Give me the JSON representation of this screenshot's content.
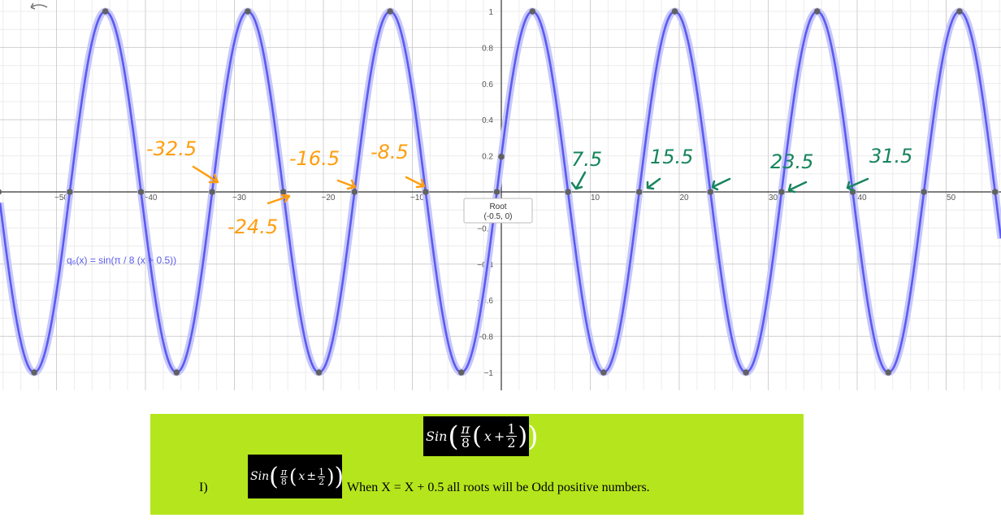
{
  "chart_data": {
    "type": "line",
    "function_label": "q₆(x) = sin(π / 8 (x + 0.5))",
    "x_ticks": [
      -50,
      -40,
      -30,
      -20,
      -10,
      0,
      10,
      20,
      30,
      40,
      50
    ],
    "x_tick_labels": [
      "−50",
      "−40",
      "−30",
      "−20",
      "−10",
      "0",
      "10",
      "20",
      "30",
      "40",
      "50"
    ],
    "y_ticks": [
      1,
      0.8,
      0.6,
      0.4,
      0.2,
      -0.2,
      -0.4,
      -0.6,
      -0.8,
      -1
    ],
    "y_tick_labels": [
      "1",
      "0.8",
      "0.6",
      "0.4",
      "0.2",
      "−0.2",
      "−0.4",
      "−0.6",
      "−0.8",
      "−1"
    ],
    "xlim": [
      -56.2,
      56.1
    ],
    "ylim": [
      -1.06,
      1.06
    ],
    "grid": true,
    "series": [
      {
        "expression": "sin(pi/8*(x+0.5))",
        "period": 16,
        "phase_shift": -0.5,
        "color": "#5b5bf0",
        "marked_roots": [
          -56.5,
          -48.5,
          -40.5,
          -32.5,
          -24.5,
          -16.5,
          -8.5,
          -0.5,
          7.5,
          15.5,
          23.5,
          31.5,
          39.5,
          47.5,
          55.5
        ],
        "marked_maxima": [
          -44.5,
          -28.5,
          -12.5,
          3.5,
          19.5,
          35.5,
          51.5
        ],
        "marked_minima": [
          -52.5,
          -36.5,
          -20.5,
          -4.5,
          11.5,
          27.5,
          43.5
        ],
        "y_intercept": 0.195
      }
    ],
    "tooltip": {
      "title": "Root",
      "value": "(-0.5, 0)"
    },
    "annotations": [
      {
        "text": "-32.5",
        "color": "#ff9e0d",
        "x_value": -32.5
      },
      {
        "text": "-24.5",
        "color": "#ff9e0d",
        "x_value": -24.5
      },
      {
        "text": "-16.5",
        "color": "#ff9e0d",
        "x_value": -16.5
      },
      {
        "text": "-8.5",
        "color": "#ff9e0d",
        "x_value": -8.5
      },
      {
        "text": "7.5",
        "color": "#17855c",
        "x_value": 7.5
      },
      {
        "text": "15.5",
        "color": "#17855c",
        "x_value": 15.5
      },
      {
        "text": "23.5",
        "color": "#17855c",
        "x_value": 23.5
      },
      {
        "text": "31.5",
        "color": "#17855c",
        "x_value": 31.5
      }
    ]
  },
  "panel": {
    "formula_top": {
      "func": "Sin",
      "pi": "π",
      "den": "8",
      "x": "x",
      "op": "+",
      "num2": "1",
      "den2": "2"
    },
    "formula_row": {
      "func": "Sin",
      "pi": "π",
      "den": "8",
      "x": "x",
      "op": "±",
      "num2": "1",
      "den2": "2"
    },
    "label": "I)",
    "text": "When X = X + 0.5 all roots will be Odd positive numbers."
  },
  "colors": {
    "panel_bg": "#b5e61d",
    "curve": "#5b5bf0",
    "orange": "#ff9e0d",
    "green": "#17855c"
  }
}
